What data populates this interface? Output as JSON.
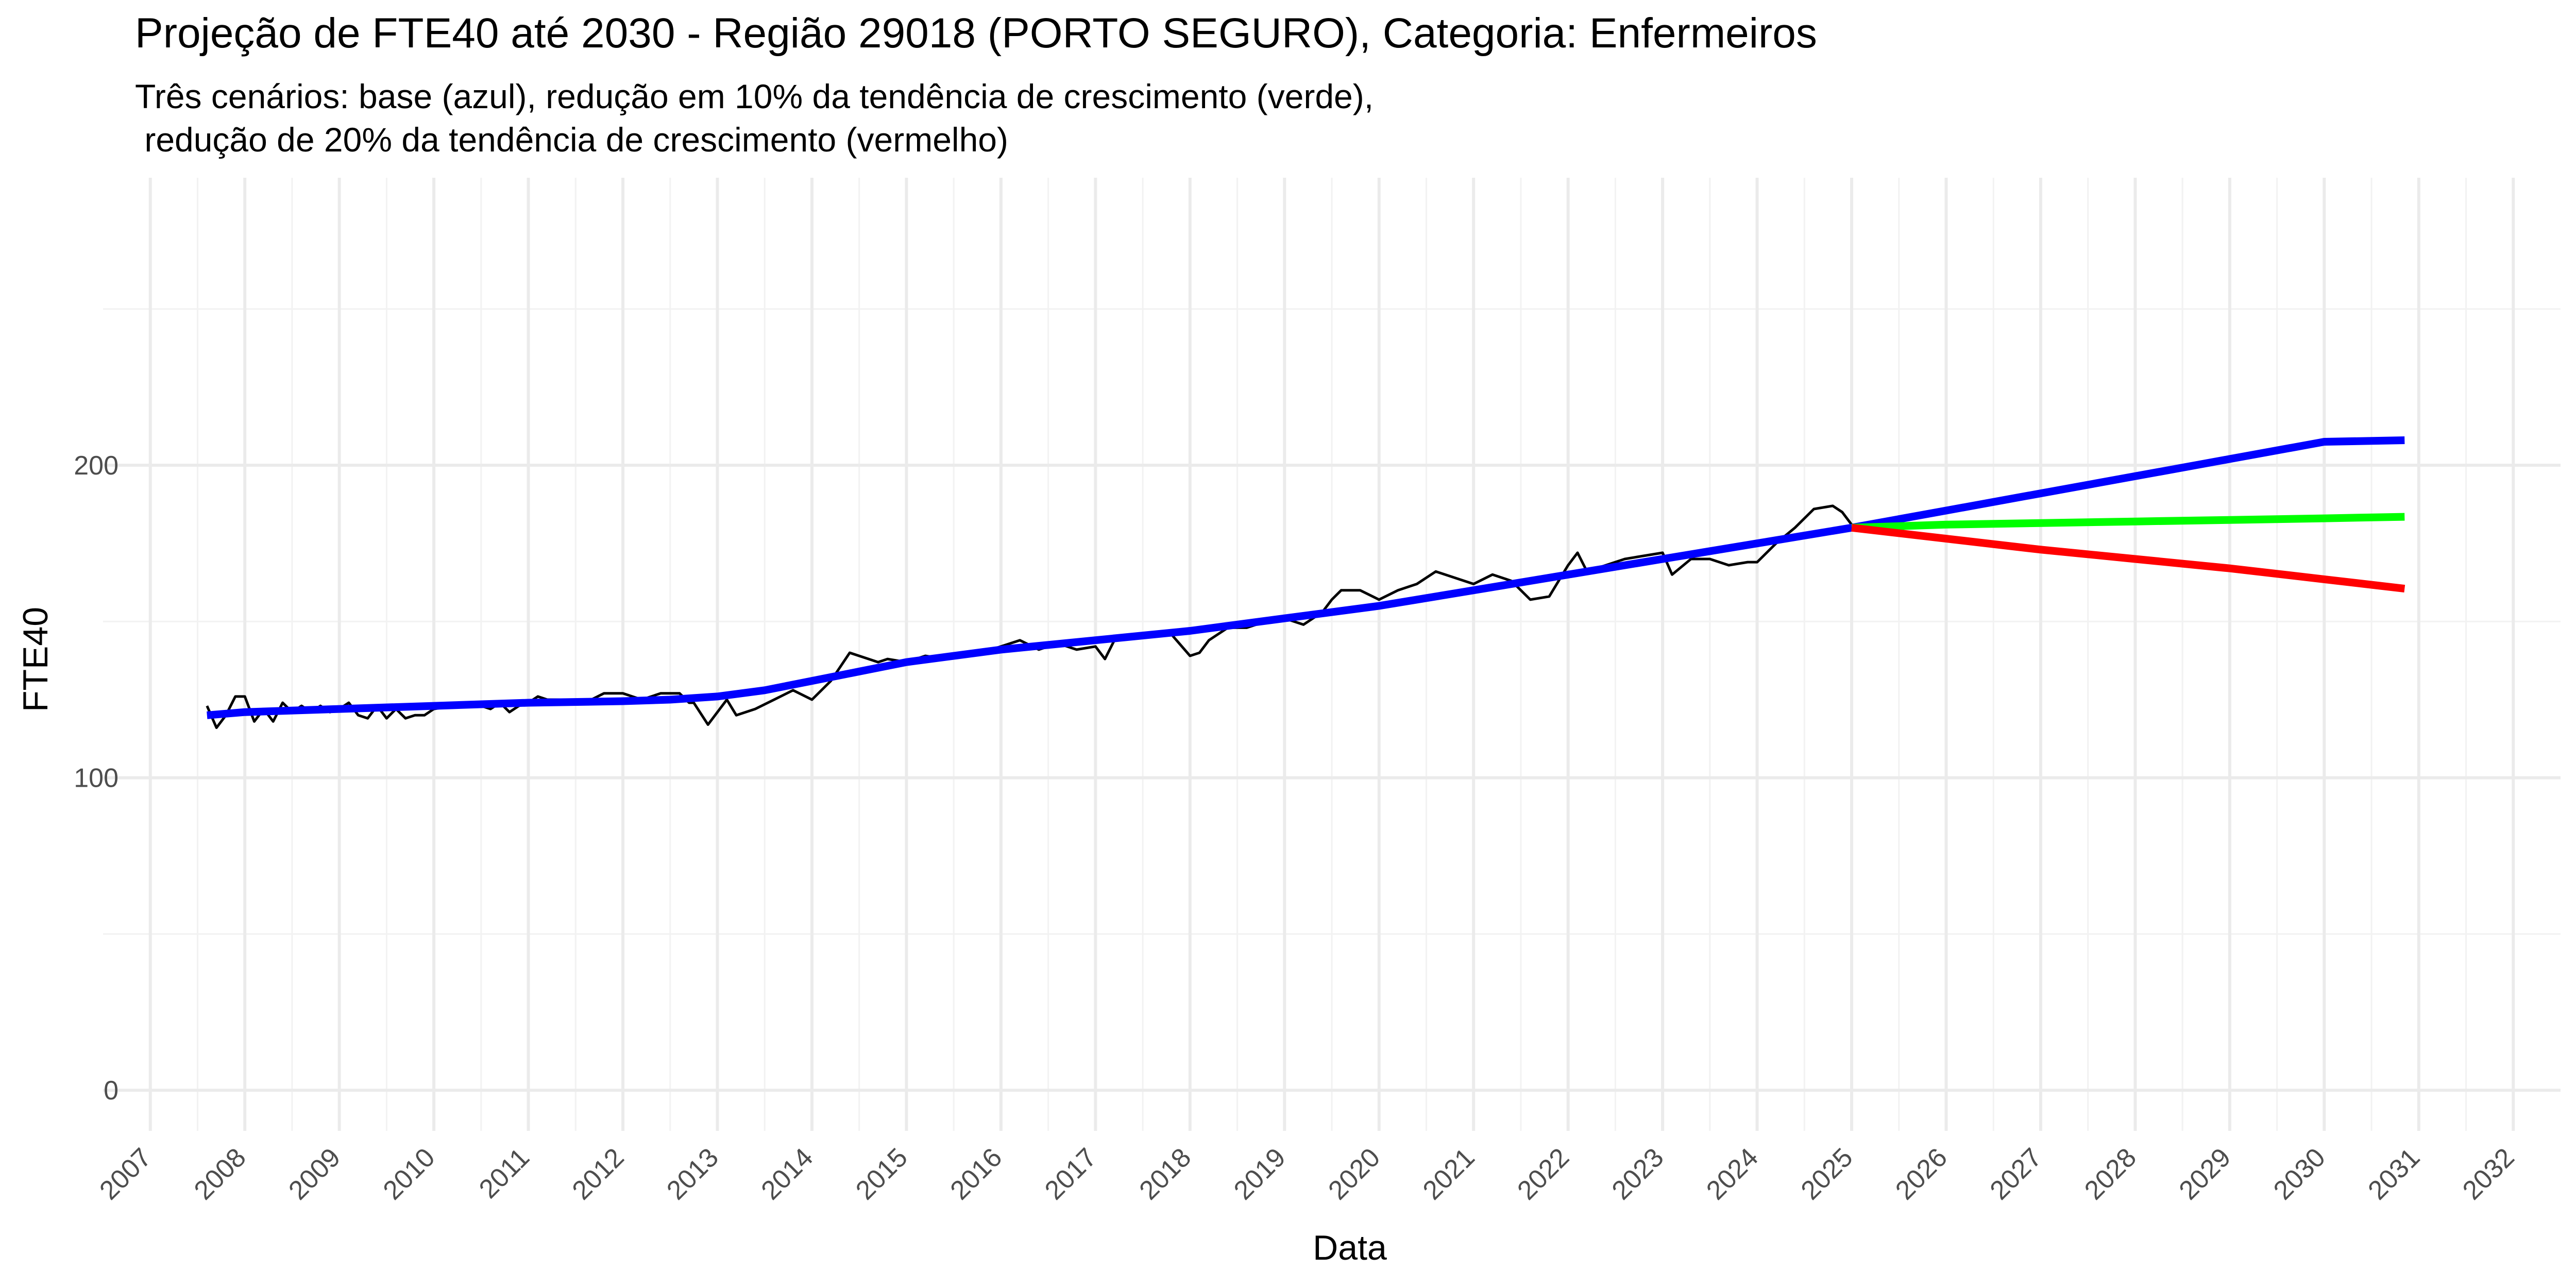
{
  "chart_data": {
    "type": "line",
    "title": "Projeção de FTE40 até 2030 - Região 29018 (PORTO SEGURO), Categoria: Enfermeiros",
    "subtitle_lines": [
      "Três cenários: base (azul), redução em 10% da tendência de crescimento (verde),",
      " redução de 20% da tendência de crescimento (vermelho)"
    ],
    "xlabel": "Data",
    "ylabel": "FTE40",
    "xlim": [
      2006.5,
      2032.5
    ],
    "ylim": [
      -13,
      292
    ],
    "y_ticks": [
      "0",
      "100",
      "200"
    ],
    "y_tick_values": [
      0,
      100,
      200
    ],
    "x_ticks": [
      "2007",
      "2008",
      "2009",
      "2010",
      "2011",
      "2012",
      "2013",
      "2014",
      "2015",
      "2016",
      "2017",
      "2018",
      "2019",
      "2020",
      "2021",
      "2022",
      "2023",
      "2024",
      "2025",
      "2026",
      "2027",
      "2028",
      "2029",
      "2030",
      "2031",
      "2032"
    ],
    "x_tick_values": [
      2007,
      2008,
      2009,
      2010,
      2011,
      2012,
      2013,
      2014,
      2015,
      2016,
      2017,
      2018,
      2019,
      2020,
      2021,
      2022,
      2023,
      2024,
      2025,
      2026,
      2027,
      2028,
      2029,
      2030,
      2031,
      2032
    ],
    "grid": true,
    "series": [
      {
        "color": "#000000",
        "x": [
          2007.6,
          2007.7,
          2007.8,
          2007.9,
          2008.0,
          2008.1,
          2008.2,
          2008.3,
          2008.4,
          2008.5,
          2008.6,
          2008.7,
          2008.8,
          2008.9,
          2009.0,
          2009.1,
          2009.2,
          2009.3,
          2009.4,
          2009.5,
          2009.6,
          2009.7,
          2009.8,
          2009.9,
          2010.0,
          2010.2,
          2010.4,
          2010.6,
          2010.7,
          2010.8,
          2010.9,
          2011.0,
          2011.1,
          2011.2,
          2011.4,
          2011.6,
          2011.8,
          2012.0,
          2012.2,
          2012.4,
          2012.6,
          2012.7,
          2012.75,
          2012.9,
          2013.1,
          2013.2,
          2013.4,
          2013.6,
          2013.8,
          2014.0,
          2014.2,
          2014.4,
          2014.6,
          2014.7,
          2014.8,
          2015.0,
          2015.2,
          2015.4,
          2015.6,
          2015.8,
          2016.0,
          2016.2,
          2016.4,
          2016.6,
          2016.8,
          2017.0,
          2017.1,
          2017.2,
          2017.4,
          2017.6,
          2017.8,
          2018.0,
          2018.1,
          2018.2,
          2018.4,
          2018.6,
          2018.8,
          2019.0,
          2019.2,
          2019.4,
          2019.5,
          2019.6,
          2019.8,
          2020.0,
          2020.2,
          2020.4,
          2020.6,
          2020.8,
          2021.0,
          2021.2,
          2021.4,
          2021.6,
          2021.8,
          2022.0,
          2022.1,
          2022.2,
          2022.4,
          2022.6,
          2022.8,
          2023.0,
          2023.1,
          2023.3,
          2023.5,
          2023.7,
          2023.9,
          2024.0,
          2024.2,
          2024.4,
          2024.6,
          2024.8,
          2024.9,
          2025.0
        ],
        "values": [
          123,
          116,
          120,
          126,
          126,
          118,
          122,
          118,
          124,
          121,
          123,
          121,
          123,
          121,
          122,
          124,
          120,
          119,
          123,
          119,
          122,
          119,
          120,
          120,
          122,
          123,
          124,
          122,
          124,
          121,
          123,
          124,
          126,
          125,
          125,
          124,
          127,
          127,
          125,
          127,
          127,
          124,
          124,
          117,
          125,
          120,
          122,
          125,
          128,
          125,
          131,
          140,
          138,
          137,
          138,
          137,
          139,
          138,
          140,
          140,
          142,
          144,
          141,
          143,
          141,
          142,
          138,
          144,
          146,
          146,
          146,
          139,
          140,
          144,
          148,
          148,
          150,
          151,
          149,
          153,
          157,
          160,
          160,
          157,
          160,
          162,
          166,
          164,
          162,
          165,
          163,
          157,
          158,
          168,
          172,
          166,
          168,
          170,
          171,
          172,
          165,
          170,
          170,
          168,
          169,
          169,
          175,
          180,
          186,
          187,
          185,
          181
        ]
      },
      {
        "color": "#0000ff",
        "x": [
          2007.6,
          2008.0,
          2009.0,
          2010.0,
          2011.0,
          2012.0,
          2012.5,
          2013.0,
          2013.5,
          2014.0,
          2014.5,
          2015.0,
          2016.0,
          2017.0,
          2018.0,
          2019.0,
          2020.0,
          2021.0,
          2022.0,
          2023.0,
          2024.0,
          2025.0,
          2026.0,
          2027.0,
          2028.0,
          2029.0,
          2030.0,
          2030.85
        ],
        "values": [
          120,
          121,
          122,
          123,
          124,
          124.5,
          125,
          126,
          128,
          131,
          134,
          137,
          141,
          144,
          147,
          151,
          155,
          160,
          165,
          170,
          175,
          180,
          185.5,
          191,
          196.5,
          202,
          207.5,
          208
        ]
      },
      {
        "color": "#00ff00",
        "x": [
          2025.0,
          2026.0,
          2027.0,
          2028.0,
          2029.0,
          2030.0,
          2030.85
        ],
        "values": [
          180,
          181,
          181.5,
          182,
          182.5,
          183,
          183.5
        ]
      },
      {
        "color": "#ff0000",
        "x": [
          2025.0,
          2026.0,
          2027.0,
          2028.0,
          2029.0,
          2030.0,
          2030.85
        ],
        "values": [
          180,
          176.5,
          173,
          170,
          167,
          163.5,
          160.5
        ]
      }
    ]
  }
}
